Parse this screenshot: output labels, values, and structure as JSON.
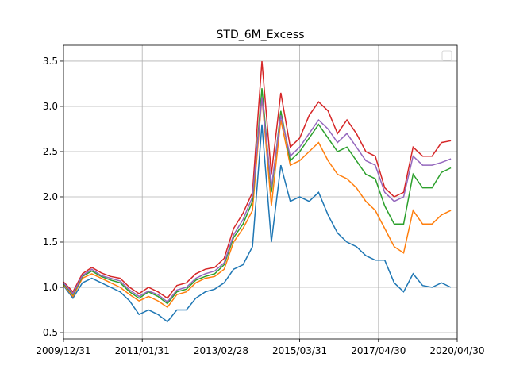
{
  "chart_data": {
    "type": "line",
    "title": "STD_6M_Excess",
    "x": [
      0,
      3,
      6,
      9,
      12,
      15,
      18,
      21,
      24,
      27,
      30,
      33,
      36,
      39,
      42,
      45,
      48,
      51,
      54,
      57,
      60,
      63,
      66,
      69,
      72,
      75,
      78,
      81,
      84,
      87,
      90,
      93,
      96,
      99,
      102,
      105,
      108,
      111,
      114,
      117,
      120,
      123
    ],
    "series": [
      {
        "color": "#1f77b4",
        "values": [
          1.02,
          0.88,
          1.05,
          1.1,
          1.05,
          1.0,
          0.95,
          0.85,
          0.7,
          0.75,
          0.7,
          0.62,
          0.75,
          0.75,
          0.88,
          0.95,
          0.98,
          1.05,
          1.2,
          1.25,
          1.45,
          2.8,
          1.5,
          2.35,
          1.95,
          2.0,
          1.95,
          2.05,
          1.8,
          1.6,
          1.5,
          1.45,
          1.35,
          1.3,
          1.3,
          1.05,
          0.95,
          1.15,
          1.02,
          1.0,
          1.05,
          1.0
        ]
      },
      {
        "color": "#ff7f0e",
        "values": [
          1.03,
          0.9,
          1.1,
          1.15,
          1.1,
          1.05,
          1.0,
          0.92,
          0.85,
          0.9,
          0.85,
          0.78,
          0.92,
          0.95,
          1.05,
          1.1,
          1.12,
          1.2,
          1.5,
          1.65,
          1.85,
          3.1,
          1.9,
          2.85,
          2.35,
          2.4,
          2.5,
          2.6,
          2.4,
          2.25,
          2.2,
          2.1,
          1.95,
          1.85,
          1.65,
          1.45,
          1.38,
          1.85,
          1.7,
          1.7,
          1.8,
          1.85
        ]
      },
      {
        "color": "#2ca02c",
        "values": [
          1.04,
          0.92,
          1.12,
          1.18,
          1.12,
          1.08,
          1.05,
          0.95,
          0.88,
          0.95,
          0.9,
          0.82,
          0.95,
          0.98,
          1.08,
          1.12,
          1.15,
          1.25,
          1.55,
          1.7,
          1.95,
          3.2,
          2.05,
          2.95,
          2.4,
          2.5,
          2.65,
          2.8,
          2.65,
          2.5,
          2.55,
          2.4,
          2.25,
          2.2,
          1.9,
          1.7,
          1.7,
          2.25,
          2.1,
          2.1,
          2.27,
          2.32
        ]
      },
      {
        "color": "#d62728",
        "values": [
          1.06,
          0.95,
          1.15,
          1.22,
          1.16,
          1.12,
          1.1,
          1.0,
          0.93,
          1.0,
          0.95,
          0.88,
          1.02,
          1.05,
          1.15,
          1.2,
          1.22,
          1.32,
          1.65,
          1.82,
          2.05,
          3.5,
          2.25,
          3.15,
          2.55,
          2.65,
          2.9,
          3.05,
          2.95,
          2.7,
          2.85,
          2.7,
          2.5,
          2.45,
          2.1,
          2.0,
          2.05,
          2.55,
          2.45,
          2.45,
          2.6,
          2.62
        ]
      },
      {
        "color": "#9467bd",
        "values": [
          1.05,
          0.93,
          1.13,
          1.2,
          1.13,
          1.1,
          1.07,
          0.97,
          0.9,
          0.96,
          0.92,
          0.84,
          0.97,
          1.0,
          1.1,
          1.15,
          1.18,
          1.27,
          1.58,
          1.75,
          2.0,
          3.1,
          2.1,
          2.9,
          2.45,
          2.55,
          2.7,
          2.85,
          2.75,
          2.6,
          2.7,
          2.55,
          2.4,
          2.35,
          2.05,
          1.95,
          2.0,
          2.45,
          2.35,
          2.35,
          2.38,
          2.42
        ]
      }
    ],
    "xlim": [
      0,
      125
    ],
    "xticks": [
      {
        "value": 0,
        "label": "2009/12/31"
      },
      {
        "value": 25,
        "label": "2011/01/31"
      },
      {
        "value": 50,
        "label": "2013/02/28"
      },
      {
        "value": 75,
        "label": "2015/03/31"
      },
      {
        "value": 100,
        "label": "2017/04/30"
      },
      {
        "value": 125,
        "label": "2020/04/30"
      }
    ],
    "ylim": [
      0.43,
      3.675
    ],
    "yticks": [
      0.5,
      {
        "value": 1,
        "label": "1.0"
      },
      1.5,
      {
        "value": 2,
        "label": "2.0"
      },
      2.5,
      {
        "value": 3,
        "label": "3.0"
      },
      3.5
    ],
    "grid": true,
    "legend": "upper right"
  }
}
